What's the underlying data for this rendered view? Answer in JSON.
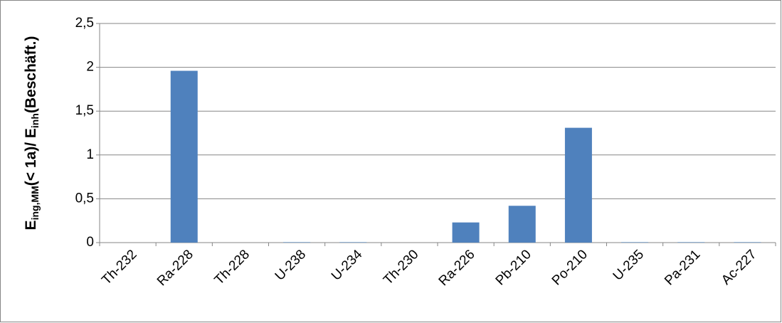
{
  "chart_data": {
    "type": "bar",
    "y_label": [
      "E",
      "ing,MM",
      "(< 1a)/ E",
      "inh",
      "(Beschäft.)"
    ],
    "categories": [
      "Th-232",
      "Ra-228",
      "Th-228",
      "U-238",
      "U-234",
      "Th-230",
      "Ra-226",
      "Pb-210",
      "Po-210",
      "U-235",
      "Pa-231",
      "Ac-227"
    ],
    "values": [
      0,
      1.96,
      0,
      0.005,
      0.005,
      0,
      0.23,
      0.42,
      1.31,
      0.005,
      0.005,
      0.005
    ],
    "color": "#4f81bd",
    "ylim": [
      0,
      2.5
    ],
    "yticks": [
      0,
      {
        "value": 0.5,
        "label": "0,5"
      },
      1,
      {
        "value": 1.5,
        "label": "1,5"
      },
      2,
      {
        "value": 2.5,
        "label": "2,5"
      }
    ],
    "grid": true
  }
}
